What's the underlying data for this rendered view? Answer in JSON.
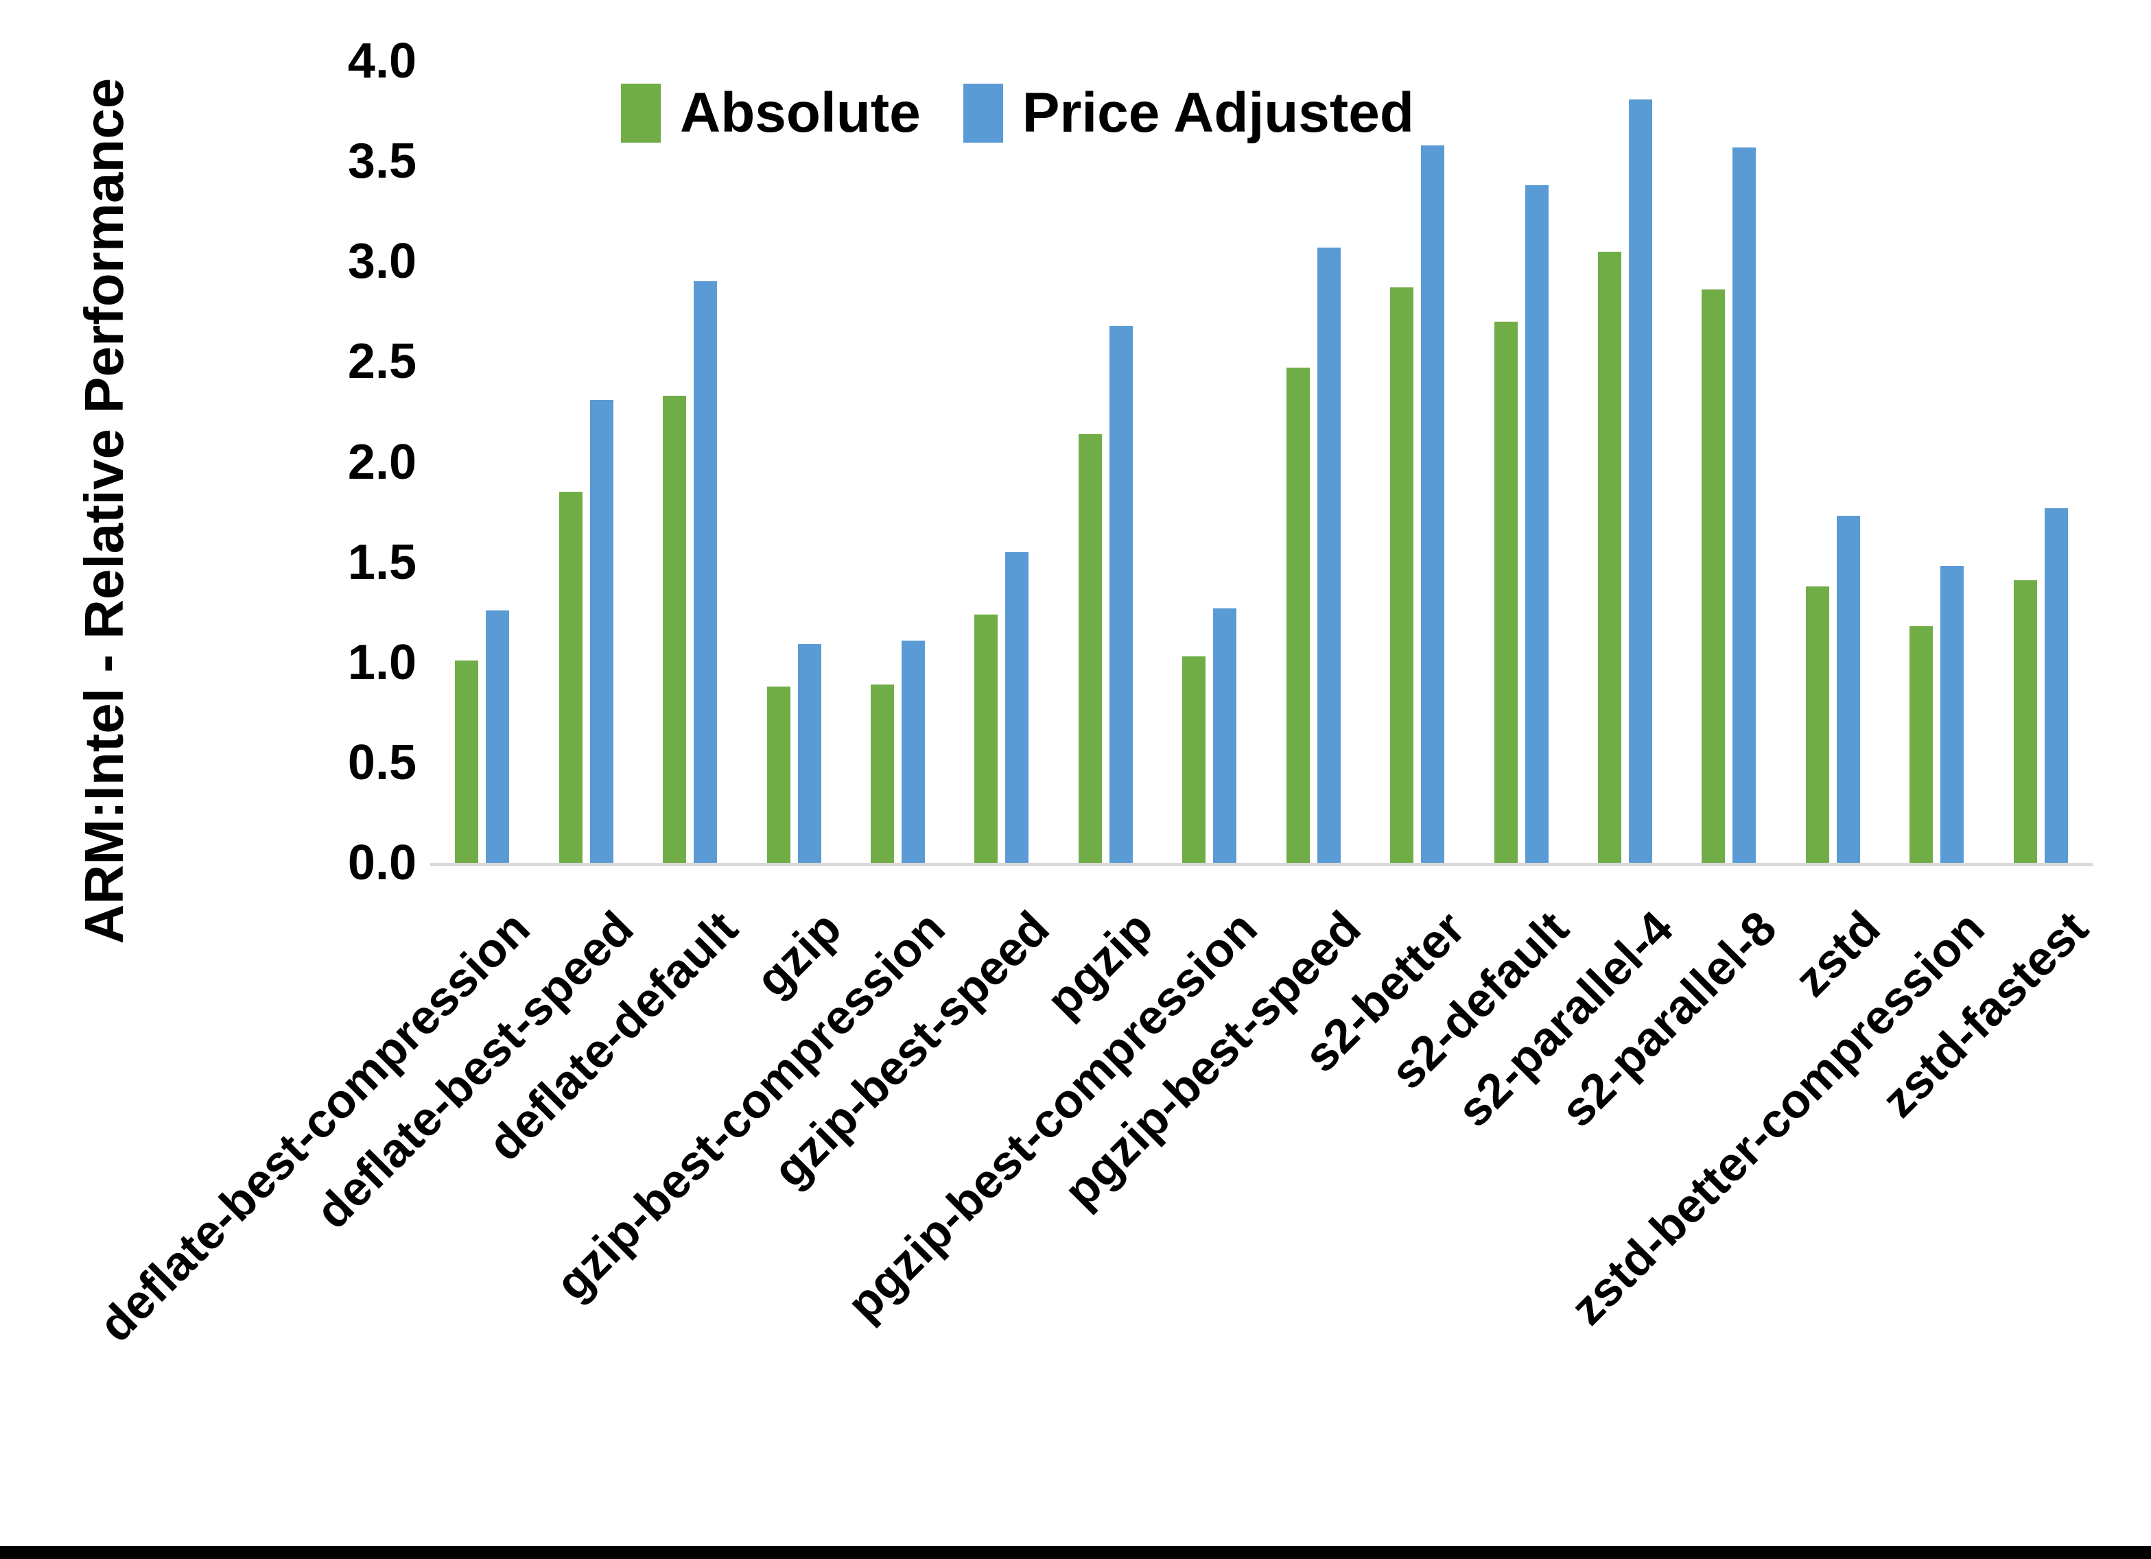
{
  "chart_data": {
    "type": "bar",
    "title": "",
    "xlabel": "",
    "ylabel": "ARM:Intel - Relative Performance",
    "ylim": [
      0.0,
      4.0
    ],
    "ytick_step": 0.5,
    "ytick_labels": [
      "0.0",
      "0.5",
      "1.0",
      "1.5",
      "2.0",
      "2.5",
      "3.0",
      "3.5",
      "4.0"
    ],
    "grid": false,
    "legend_position": "top-center",
    "categories": [
      "deflate-best-compression",
      "deflate-best-speed",
      "deflate-default",
      "gzip",
      "gzip-best-compression",
      "gzip-best-speed",
      "pgzip",
      "pgzip-best-compression",
      "pgzip-best-speed",
      "s2-better",
      "s2-default",
      "s2-parallel-4",
      "s2-parallel-8",
      "zstd",
      "zstd-better-compression",
      "zstd-fastest"
    ],
    "series": [
      {
        "name": "Absolute",
        "color": "#70AD47",
        "values": [
          1.01,
          1.85,
          2.33,
          0.88,
          0.89,
          1.24,
          2.14,
          1.03,
          2.47,
          2.87,
          2.7,
          3.05,
          2.86,
          1.38,
          1.18,
          1.41
        ]
      },
      {
        "name": "Price Adjusted",
        "color": "#5B9BD5",
        "values": [
          1.26,
          2.31,
          2.9,
          1.09,
          1.11,
          1.55,
          2.68,
          1.27,
          3.07,
          3.58,
          3.38,
          3.81,
          3.57,
          1.73,
          1.48,
          1.77
        ]
      }
    ]
  },
  "colors": {
    "background": "#FFFFFF",
    "text": "#000000",
    "axis_line": "#D9D9D9",
    "bottom_edge_bar": "#000000",
    "series_absolute": "#70AD47",
    "series_price_adjusted": "#5B9BD5"
  }
}
